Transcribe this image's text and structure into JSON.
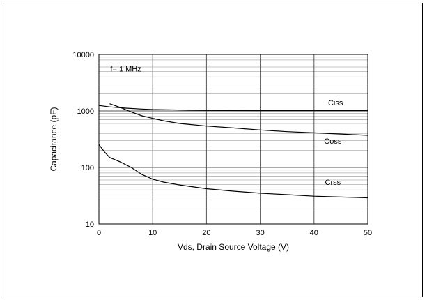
{
  "chart_data": {
    "type": "line",
    "title": "",
    "xlabel": "Vds, Drain Source Voltage (V)",
    "ylabel": "Capacitance (pF)",
    "xlim": [
      0,
      50
    ],
    "ylim": [
      10,
      10000
    ],
    "yscale": "log",
    "grid": true,
    "x_ticks": [
      0,
      10,
      20,
      30,
      40,
      50
    ],
    "x_tick_labels": [
      "0",
      "10",
      "20",
      "30",
      "40",
      "50"
    ],
    "y_ticks": [
      10,
      100,
      1000,
      10000
    ],
    "y_tick_labels": [
      "10",
      "100",
      "1000",
      "10000"
    ],
    "annotations": [
      {
        "text": "f= 1 MHz",
        "x": 5,
        "y": 5600
      },
      {
        "text": "Ciss",
        "x": 44,
        "y": 1400
      },
      {
        "text": "Coss",
        "x": 43.5,
        "y": 295
      },
      {
        "text": "Crss",
        "x": 43.5,
        "y": 55
      }
    ],
    "series": [
      {
        "name": "Ciss",
        "x": [
          0,
          2,
          5,
          8,
          10,
          15,
          20,
          30,
          40,
          50
        ],
        "y": [
          1250,
          1180,
          1120,
          1080,
          1060,
          1040,
          1020,
          1010,
          1010,
          1010
        ]
      },
      {
        "name": "Coss",
        "x": [
          2,
          4,
          6,
          8,
          10,
          12,
          15,
          20,
          25,
          30,
          35,
          40,
          45,
          50
        ],
        "y": [
          1340,
          1150,
          960,
          820,
          740,
          670,
          600,
          540,
          500,
          460,
          430,
          410,
          390,
          370
        ]
      },
      {
        "name": "Crss",
        "x": [
          0,
          1,
          2,
          4,
          6,
          8,
          10,
          12,
          15,
          20,
          25,
          30,
          35,
          40,
          45,
          50
        ],
        "y": [
          255,
          190,
          150,
          125,
          100,
          75,
          62,
          55,
          49,
          42,
          38,
          35,
          33,
          31,
          30,
          29
        ]
      }
    ]
  }
}
